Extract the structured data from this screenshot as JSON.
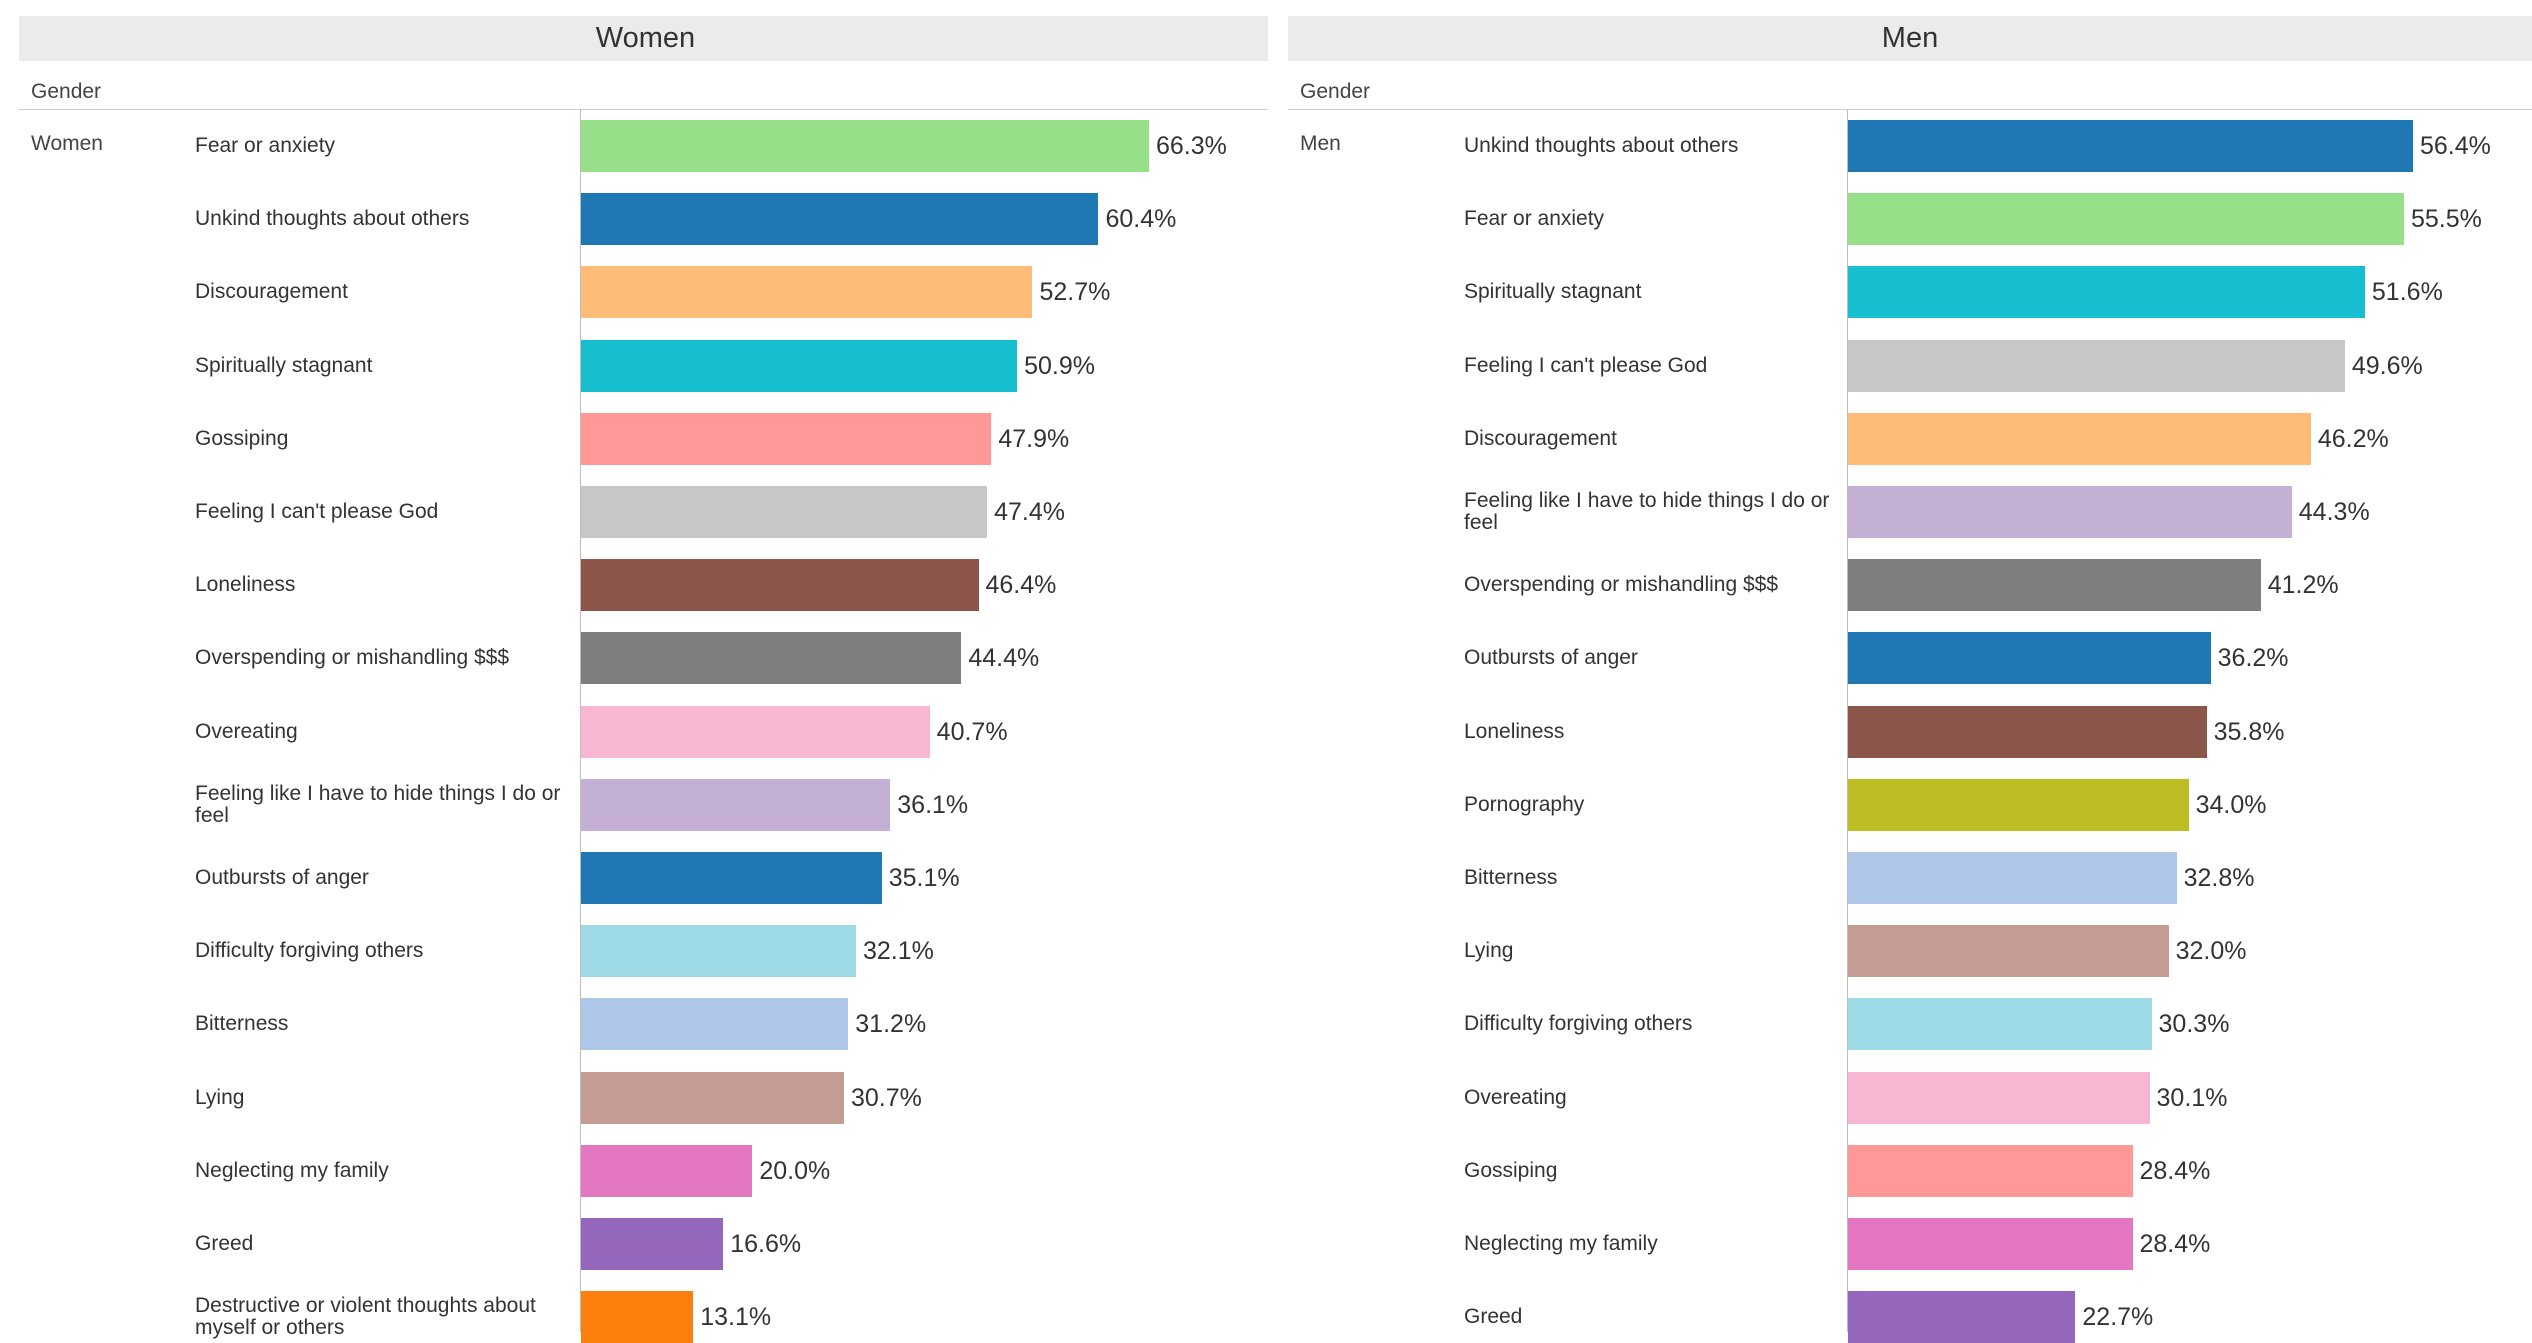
{
  "chart_data": [
    {
      "type": "bar",
      "orientation": "horizontal",
      "title": "Women",
      "row_header": "Gender",
      "group": "Women",
      "categories": [
        "Fear or anxiety",
        "Unkind thoughts about others",
        "Discouragement",
        "Spiritually stagnant",
        "Gossiping",
        "Feeling I can't please God",
        "Loneliness",
        "Overspending or mishandling $$$",
        "Overeating",
        "Feeling like I have to hide things I do or feel",
        "Outbursts of anger",
        "Difficulty forgiving others",
        "Bitterness",
        "Lying",
        "Neglecting my family",
        "Greed",
        "Destructive or violent thoughts about myself or others"
      ],
      "values": [
        66.3,
        60.4,
        52.7,
        50.9,
        47.9,
        47.4,
        46.4,
        44.4,
        40.7,
        36.1,
        35.1,
        32.1,
        31.2,
        30.7,
        20.0,
        16.6,
        13.1
      ],
      "labels": [
        "66.3%",
        "60.4%",
        "52.7%",
        "50.9%",
        "47.9%",
        "47.4%",
        "46.4%",
        "44.4%",
        "40.7%",
        "36.1%",
        "35.1%",
        "32.1%",
        "31.2%",
        "30.7%",
        "20.0%",
        "16.6%",
        "13.1%"
      ],
      "colors": [
        "#98df8a",
        "#1f77b4",
        "#ffbb78",
        "#17becf",
        "#ff9896",
        "#c7c7c7",
        "#8c564b",
        "#7f7f7f",
        "#f7b6d2",
        "#c5b0d5",
        "#1f77b4",
        "#9edae5",
        "#aec7e8",
        "#c49c94",
        "#e377c2",
        "#9467bd",
        "#ff7f0e"
      ],
      "xlim": [
        0,
        66.3
      ],
      "grid": false
    },
    {
      "type": "bar",
      "orientation": "horizontal",
      "title": "Men",
      "row_header": "Gender",
      "group": "Men",
      "categories": [
        "Unkind thoughts about others",
        "Fear or anxiety",
        "Spiritually stagnant",
        "Feeling I can't please God",
        "Discouragement",
        "Feeling like I have to hide things I do or feel",
        "Overspending or mishandling $$$",
        "Outbursts of anger",
        "Loneliness",
        "Pornography",
        "Bitterness",
        "Lying",
        "Difficulty forgiving others",
        "Overeating",
        "Gossiping",
        "Neglecting my family",
        "Greed"
      ],
      "values": [
        56.4,
        55.5,
        51.6,
        49.6,
        46.2,
        44.3,
        41.2,
        36.2,
        35.8,
        34.0,
        32.8,
        32.0,
        30.3,
        30.1,
        28.4,
        28.4,
        22.7
      ],
      "labels": [
        "56.4%",
        "55.5%",
        "51.6%",
        "49.6%",
        "46.2%",
        "44.3%",
        "41.2%",
        "36.2%",
        "35.8%",
        "34.0%",
        "32.8%",
        "32.0%",
        "30.3%",
        "30.1%",
        "28.4%",
        "28.4%",
        "22.7%"
      ],
      "colors": [
        "#1f77b4",
        "#98df8a",
        "#17becf",
        "#c7c7c7",
        "#ffbb78",
        "#c5b0d5",
        "#7f7f7f",
        "#1f77b4",
        "#8c564b",
        "#bcbd22",
        "#aec7e8",
        "#c49c94",
        "#9edae5",
        "#f7b6d2",
        "#ff9896",
        "#e377c2",
        "#9467bd"
      ],
      "xlim": [
        0,
        56.4
      ],
      "grid": false
    }
  ]
}
